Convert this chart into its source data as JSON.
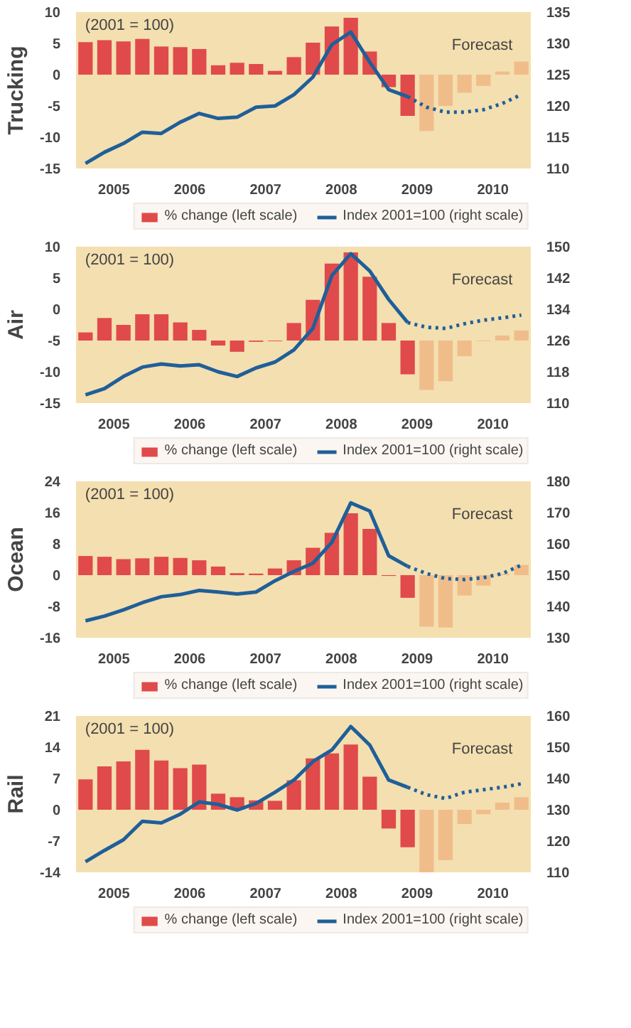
{
  "chart_data": [
    {
      "type": "bar",
      "ylabel": "Trucking",
      "annotations": [
        "(2001 = 100)",
        "Forecast"
      ],
      "legend": "bottom",
      "xlim": [
        2005,
        2011
      ],
      "xticks": [
        {
          "value": 2005.5,
          "label": "2005"
        },
        {
          "value": 2006.5,
          "label": "2006"
        },
        {
          "value": 2007.5,
          "label": "2007"
        },
        {
          "value": 2008.5,
          "label": "2008"
        },
        {
          "value": 2009.5,
          "label": "2009"
        },
        {
          "value": 2010.5,
          "label": "2010"
        }
      ],
      "ylim": [
        -15,
        10
      ],
      "yticks": [
        -15,
        -10,
        -5,
        0,
        5,
        10
      ],
      "y2lim": [
        110,
        135
      ],
      "y2ticks": [
        110,
        115,
        120,
        125,
        130,
        135
      ],
      "x": [
        2005.125,
        2005.375,
        2005.625,
        2005.875,
        2006.125,
        2006.375,
        2006.625,
        2006.875,
        2007.125,
        2007.375,
        2007.625,
        2007.875,
        2008.125,
        2008.375,
        2008.625,
        2008.875,
        2009.125,
        2009.375,
        2009.625,
        2009.875,
        2010.125,
        2010.375,
        2010.625,
        2010.875
      ],
      "series": [
        {
          "name": "% change (left scale)",
          "colors": [
            "#e04a4a",
            "#e04a4a",
            "#e04a4a",
            "#e04a4a",
            "#e04a4a",
            "#e04a4a",
            "#e04a4a",
            "#e04a4a",
            "#e04a4a",
            "#e04a4a",
            "#e04a4a",
            "#e04a4a",
            "#e04a4a",
            "#e04a4a",
            "#e04a4a",
            "#e04a4a",
            "#e04a4a",
            "#e04a4a",
            "#f0bd8a",
            "#f0bd8a",
            "#f0bd8a",
            "#f0bd8a",
            "#f0bd8a",
            "#f0bd8a"
          ],
          "values": [
            5.2,
            5.5,
            5.3,
            5.7,
            4.5,
            4.4,
            4.1,
            1.5,
            1.9,
            1.7,
            0.6,
            2.8,
            5.1,
            7.7,
            9.1,
            3.7,
            -2.0,
            -6.6,
            -9.0,
            -5.0,
            -2.9,
            -1.8,
            0.5,
            2.1
          ]
        },
        {
          "type": "line",
          "name": "Index 2001=100 (right scale)",
          "axis": "y2",
          "color": "#1f5f99",
          "x": [
            2005.125,
            2005.375,
            2005.625,
            2005.875,
            2006.125,
            2006.375,
            2006.625,
            2006.875,
            2007.125,
            2007.375,
            2007.625,
            2007.875,
            2008.125,
            2008.375,
            2008.625,
            2008.875,
            2009.125,
            2009.375
          ],
          "values": [
            110.8,
            112.6,
            114,
            115.8,
            115.6,
            117.4,
            118.8,
            118,
            118.2,
            119.8,
            120,
            121.8,
            124.6,
            129.8,
            131.8,
            127,
            122.6,
            121.5
          ]
        },
        {
          "type": "line",
          "axis": "y2",
          "color": "#1f5f99",
          "line_style": "dotted",
          "x": [
            2009.375,
            2009.625,
            2009.875,
            2010.125,
            2010.375,
            2010.625,
            2010.875
          ],
          "values": [
            121.5,
            119.8,
            119.0,
            119.0,
            119.4,
            120.4,
            121.8
          ]
        }
      ]
    },
    {
      "type": "bar",
      "ylabel": "Air",
      "annotations": [
        "(2001 = 100)",
        "Forecast"
      ],
      "legend": "bottom",
      "xlim": [
        2005,
        2011
      ],
      "xticks": [
        {
          "value": 2005.5,
          "label": "2005"
        },
        {
          "value": 2006.5,
          "label": "2006"
        },
        {
          "value": 2007.5,
          "label": "2007"
        },
        {
          "value": 2008.5,
          "label": "2008"
        },
        {
          "value": 2009.5,
          "label": "2009"
        },
        {
          "value": 2010.5,
          "label": "2010"
        }
      ],
      "ylim": [
        -15,
        10
      ],
      "yticks": [
        -15,
        -10,
        -5,
        0,
        5,
        10
      ],
      "y2lim": [
        110,
        150
      ],
      "y2ticks": [
        110,
        118,
        126,
        134,
        142,
        150
      ],
      "x": [
        2005.125,
        2005.375,
        2005.625,
        2005.875,
        2006.125,
        2006.375,
        2006.625,
        2006.875,
        2007.125,
        2007.375,
        2007.625,
        2007.875,
        2008.125,
        2008.375,
        2008.625,
        2008.875,
        2009.125,
        2009.375,
        2009.625,
        2009.875,
        2010.125,
        2010.375,
        2010.625,
        2010.875
      ],
      "series": [
        {
          "name": "% change (left scale)",
          "colors": [
            "#e04a4a",
            "#e04a4a",
            "#e04a4a",
            "#e04a4a",
            "#e04a4a",
            "#e04a4a",
            "#e04a4a",
            "#e04a4a",
            "#e04a4a",
            "#e04a4a",
            "#e04a4a",
            "#e04a4a",
            "#e04a4a",
            "#e04a4a",
            "#e04a4a",
            "#e04a4a",
            "#e04a4a",
            "#e04a4a",
            "#f0bd8a",
            "#f0bd8a",
            "#f0bd8a",
            "#f0bd8a",
            "#f0bd8a",
            "#f0bd8a"
          ],
          "base": [
            -5,
            -5,
            -5,
            -5,
            -5,
            -5,
            -5,
            -5,
            -5,
            -5,
            -5,
            -5,
            -5,
            -5,
            -5,
            -5,
            -5,
            -5,
            -5,
            -5,
            -5,
            -5,
            -5,
            -5
          ],
          "values": [
            1.3,
            3.6,
            2.5,
            4.2,
            4.2,
            2.9,
            1.7,
            -0.8,
            -1.8,
            -0.2,
            -0.1,
            2.8,
            6.5,
            12.3,
            14.1,
            10.2,
            2.8,
            -5.4,
            -7.9,
            -6.5,
            -2.5,
            -0.1,
            0.8,
            1.6
          ]
        },
        {
          "type": "line",
          "name": "Index 2001=100 (right scale)",
          "axis": "y2",
          "color": "#1f5f99",
          "x": [
            2005.125,
            2005.375,
            2005.625,
            2005.875,
            2006.125,
            2006.375,
            2006.625,
            2006.875,
            2007.125,
            2007.375,
            2007.625,
            2007.875,
            2008.125,
            2008.375,
            2008.625,
            2008.875,
            2009.125,
            2009.375
          ],
          "values": [
            112.1,
            113.7,
            116.8,
            119.2,
            120,
            119.5,
            119.8,
            118,
            116.8,
            119,
            120.5,
            123.6,
            129.1,
            142.6,
            148.2,
            143.8,
            136.5,
            130.6
          ]
        },
        {
          "type": "line",
          "axis": "y2",
          "color": "#1f5f99",
          "line_style": "dotted",
          "x": [
            2009.375,
            2009.625,
            2009.875,
            2010.125,
            2010.375,
            2010.625,
            2010.875
          ],
          "values": [
            130.6,
            129.4,
            129.1,
            130.3,
            131.2,
            131.8,
            132.5
          ]
        }
      ]
    },
    {
      "type": "bar",
      "ylabel": "Ocean",
      "annotations": [
        "(2001 = 100)",
        "Forecast"
      ],
      "legend": "bottom",
      "xlim": [
        2005,
        2011
      ],
      "xticks": [
        {
          "value": 2005.5,
          "label": "2005"
        },
        {
          "value": 2006.5,
          "label": "2006"
        },
        {
          "value": 2007.5,
          "label": "2007"
        },
        {
          "value": 2008.5,
          "label": "2008"
        },
        {
          "value": 2009.5,
          "label": "2009"
        },
        {
          "value": 2010.5,
          "label": "2010"
        }
      ],
      "ylim": [
        -16,
        24
      ],
      "yticks": [
        -16,
        -8,
        0,
        8,
        16,
        24
      ],
      "y2lim": [
        130,
        180
      ],
      "y2ticks": [
        130,
        140,
        150,
        160,
        170,
        180
      ],
      "x": [
        2005.125,
        2005.375,
        2005.625,
        2005.875,
        2006.125,
        2006.375,
        2006.625,
        2006.875,
        2007.125,
        2007.375,
        2007.625,
        2007.875,
        2008.125,
        2008.375,
        2008.625,
        2008.875,
        2009.125,
        2009.375,
        2009.625,
        2009.875,
        2010.125,
        2010.375,
        2010.625,
        2010.875
      ],
      "series": [
        {
          "name": "% change (left scale)",
          "colors": [
            "#e04a4a",
            "#e04a4a",
            "#e04a4a",
            "#e04a4a",
            "#e04a4a",
            "#e04a4a",
            "#e04a4a",
            "#e04a4a",
            "#e04a4a",
            "#e04a4a",
            "#e04a4a",
            "#e04a4a",
            "#e04a4a",
            "#e04a4a",
            "#e04a4a",
            "#e04a4a",
            "#e04a4a",
            "#e04a4a",
            "#f0bd8a",
            "#f0bd8a",
            "#f0bd8a",
            "#f0bd8a",
            "#f0bd8a",
            "#f0bd8a"
          ],
          "values": [
            4.9,
            4.7,
            4.1,
            4.3,
            4.7,
            4.4,
            3.8,
            2.2,
            0.5,
            0.4,
            1.7,
            3.8,
            7.0,
            10.8,
            15.8,
            11.8,
            -0.2,
            -5.8,
            -13.2,
            -13.4,
            -5.2,
            -2.7,
            0.3,
            2.6
          ]
        },
        {
          "type": "line",
          "name": "Index 2001=100 (right scale)",
          "axis": "y2",
          "color": "#1f5f99",
          "x": [
            2005.125,
            2005.375,
            2005.625,
            2005.875,
            2006.125,
            2006.375,
            2006.625,
            2006.875,
            2007.125,
            2007.375,
            2007.625,
            2007.875,
            2008.125,
            2008.375,
            2008.625,
            2008.875,
            2009.125,
            2009.375
          ],
          "values": [
            135.4,
            136.9,
            138.9,
            141.2,
            143.1,
            143.8,
            145.1,
            144.6,
            144,
            144.6,
            148.2,
            151.2,
            153.8,
            160.5,
            173.1,
            170.5,
            156.2,
            152.8
          ]
        },
        {
          "type": "line",
          "axis": "y2",
          "color": "#1f5f99",
          "line_style": "dotted",
          "x": [
            2009.375,
            2009.625,
            2009.875,
            2010.125,
            2010.375,
            2010.625,
            2010.875
          ],
          "values": [
            152.8,
            150.5,
            148.9,
            148.6,
            149.2,
            150.5,
            153.2
          ]
        }
      ]
    },
    {
      "type": "bar",
      "ylabel": "Rail",
      "annotations": [
        "(2001 = 100)",
        "Forecast"
      ],
      "legend": "bottom",
      "xlim": [
        2005,
        2011
      ],
      "xticks": [
        {
          "value": 2005.5,
          "label": "2005"
        },
        {
          "value": 2006.5,
          "label": "2006"
        },
        {
          "value": 2007.5,
          "label": "2007"
        },
        {
          "value": 2008.5,
          "label": "2008"
        },
        {
          "value": 2009.5,
          "label": "2009"
        },
        {
          "value": 2010.5,
          "label": "2010"
        }
      ],
      "ylim": [
        -14,
        21
      ],
      "yticks": [
        -14,
        -7,
        0,
        7,
        14,
        21
      ],
      "y2lim": [
        110,
        160
      ],
      "y2ticks": [
        110,
        120,
        130,
        140,
        150,
        160
      ],
      "x": [
        2005.125,
        2005.375,
        2005.625,
        2005.875,
        2006.125,
        2006.375,
        2006.625,
        2006.875,
        2007.125,
        2007.375,
        2007.625,
        2007.875,
        2008.125,
        2008.375,
        2008.625,
        2008.875,
        2009.125,
        2009.375,
        2009.625,
        2009.875,
        2010.125,
        2010.375,
        2010.625,
        2010.875
      ],
      "series": [
        {
          "name": "% change (left scale)",
          "colors": [
            "#e04a4a",
            "#e04a4a",
            "#e04a4a",
            "#e04a4a",
            "#e04a4a",
            "#e04a4a",
            "#e04a4a",
            "#e04a4a",
            "#e04a4a",
            "#e04a4a",
            "#e04a4a",
            "#e04a4a",
            "#e04a4a",
            "#e04a4a",
            "#e04a4a",
            "#e04a4a",
            "#e04a4a",
            "#e04a4a",
            "#f0bd8a",
            "#f0bd8a",
            "#f0bd8a",
            "#f0bd8a",
            "#f0bd8a",
            "#f0bd8a"
          ],
          "values": [
            6.8,
            9.7,
            10.8,
            13.4,
            11,
            9.3,
            10.1,
            3.6,
            2.8,
            2.1,
            2.0,
            6.6,
            11.5,
            12.6,
            14.6,
            7.4,
            -4.2,
            -8.4,
            -14,
            -11.3,
            -3.2,
            -1.0,
            1.6,
            2.8
          ]
        },
        {
          "type": "line",
          "name": "Index 2001=100 (right scale)",
          "axis": "y2",
          "color": "#1f5f99",
          "x": [
            2005.125,
            2005.375,
            2005.625,
            2005.875,
            2006.125,
            2006.375,
            2006.625,
            2006.875,
            2007.125,
            2007.375,
            2007.625,
            2007.875,
            2008.125,
            2008.375,
            2008.625,
            2008.875,
            2009.125,
            2009.375
          ],
          "values": [
            113.4,
            117,
            120.4,
            126.3,
            125.8,
            128.6,
            132.5,
            131.7,
            129.9,
            132,
            135.6,
            139.5,
            145.4,
            149.1,
            156.6,
            150.7,
            139.5,
            137.2
          ]
        },
        {
          "type": "line",
          "axis": "y2",
          "color": "#1f5f99",
          "line_style": "dotted",
          "x": [
            2009.375,
            2009.625,
            2009.875,
            2010.125,
            2010.375,
            2010.625,
            2010.875
          ],
          "values": [
            137.2,
            134.8,
            133.6,
            135.6,
            136.4,
            137.2,
            138.3
          ]
        }
      ]
    }
  ]
}
